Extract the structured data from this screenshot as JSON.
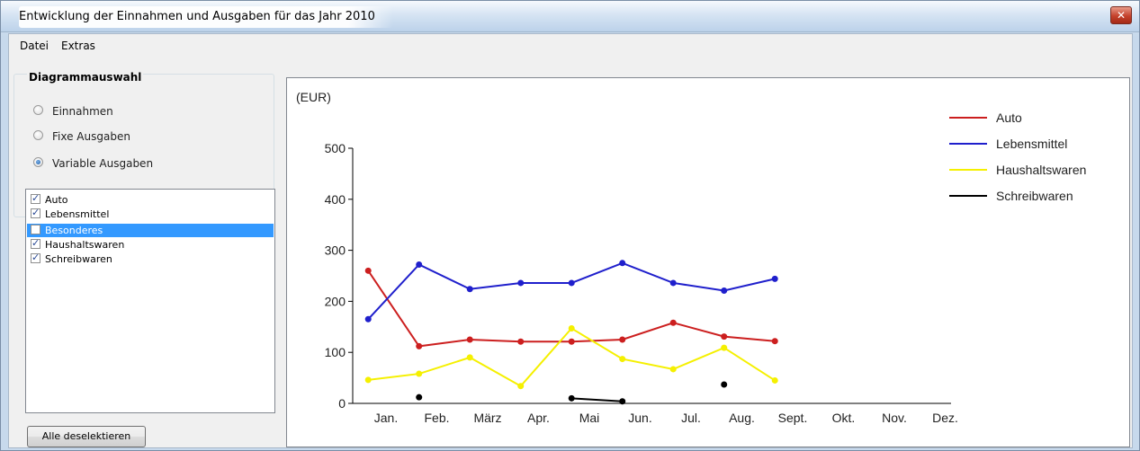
{
  "window": {
    "title": "Entwicklung der Einnahmen und Ausgaben für das Jahr 2010"
  },
  "menu": {
    "items": [
      "Datei",
      "Extras"
    ]
  },
  "diagram_selection": {
    "title": "Diagrammauswahl",
    "options": [
      {
        "label": "Einnahmen",
        "selected": false
      },
      {
        "label": "Fixe Ausgaben",
        "selected": false
      },
      {
        "label": "Variable Ausgaben",
        "selected": true
      }
    ]
  },
  "category_list": {
    "items": [
      {
        "label": "Auto",
        "checked": true,
        "highlighted": false
      },
      {
        "label": "Lebensmittel",
        "checked": true,
        "highlighted": false
      },
      {
        "label": "Besonderes",
        "checked": false,
        "highlighted": true
      },
      {
        "label": "Haushaltswaren",
        "checked": true,
        "highlighted": false
      },
      {
        "label": "Schreibwaren",
        "checked": true,
        "highlighted": false
      }
    ]
  },
  "buttons": {
    "deselect_all": "Alle deselektieren"
  },
  "chart_data": {
    "type": "line",
    "unit_label": "(EUR)",
    "ylim": [
      0,
      500
    ],
    "yticks": [
      0,
      100,
      200,
      300,
      400,
      500
    ],
    "categories": [
      "Jan.",
      "Feb.",
      "März",
      "Apr.",
      "Mai",
      "Jun.",
      "Jul.",
      "Aug.",
      "Sept.",
      "Okt.",
      "Nov.",
      "Dez."
    ],
    "grid": false,
    "legend_position": "top-right",
    "series": [
      {
        "name": "Auto",
        "color": "#cc1f1f",
        "x": [
          -0.35,
          0.65,
          1.65,
          2.65,
          3.65,
          4.65,
          5.65,
          6.65,
          7.65
        ],
        "values": [
          260,
          112,
          125,
          121,
          121,
          125,
          158,
          131,
          122
        ]
      },
      {
        "name": "Lebensmittel",
        "color": "#1f1fcc",
        "x": [
          -0.35,
          0.65,
          1.65,
          2.65,
          3.65,
          4.65,
          5.65,
          6.65,
          7.65
        ],
        "values": [
          165,
          272,
          224,
          236,
          236,
          275,
          236,
          221,
          244
        ]
      },
      {
        "name": "Haushaltswaren",
        "color": "#f5f000",
        "x": [
          -0.35,
          0.65,
          1.65,
          2.65,
          3.65,
          4.65,
          5.65,
          6.65,
          7.65
        ],
        "values": [
          46,
          58,
          90,
          34,
          147,
          87,
          67,
          109,
          45
        ]
      },
      {
        "name": "Schreibwaren",
        "color": "#000000",
        "x": [
          0.65,
          3.65,
          4.65,
          6.65
        ],
        "values": [
          12,
          10,
          4,
          37
        ],
        "segments": [
          [
            1,
            2
          ]
        ]
      }
    ]
  }
}
